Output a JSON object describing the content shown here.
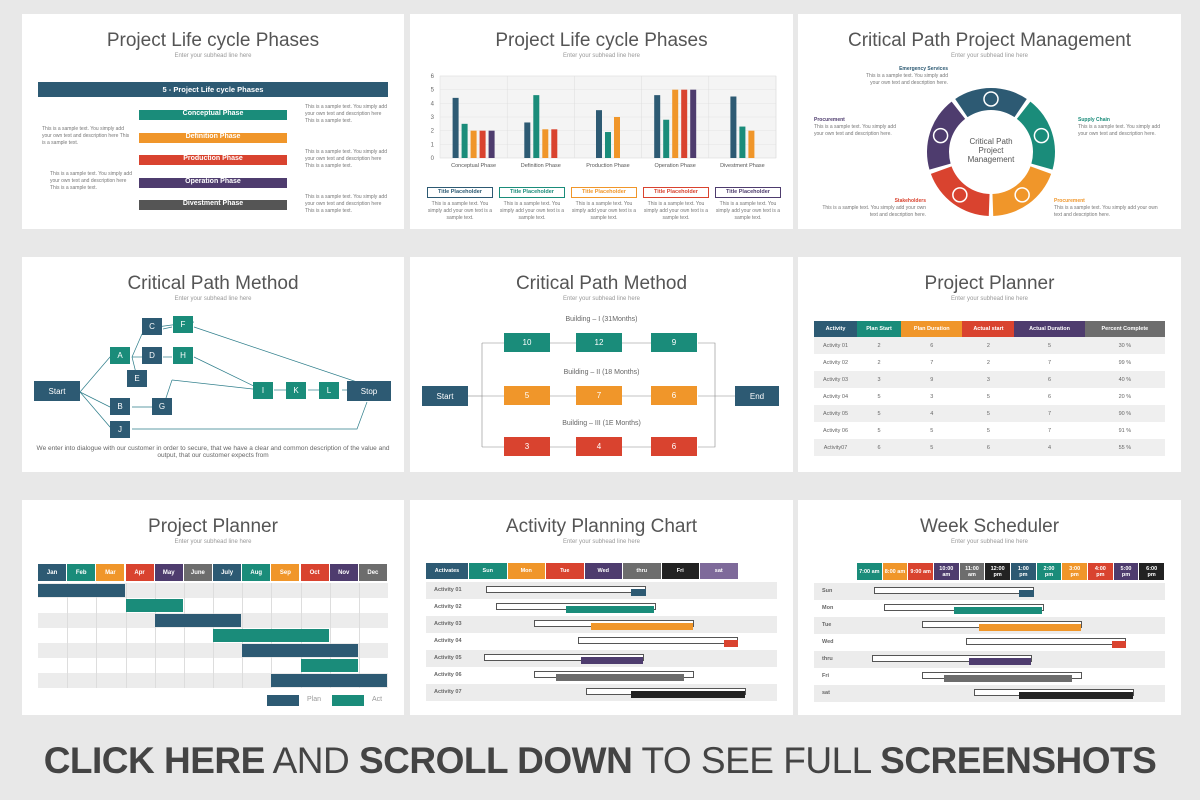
{
  "subhead": "Enter your subhead line here",
  "sample_text": "This is a sample text. You simply add your own text and description here This is a sample text.",
  "s1": {
    "title": "Project Life cycle Phases",
    "banner": "5 - Project Life cycle Phases",
    "phases": [
      {
        "label": "Conceptual Phase",
        "color": "#1a8c7a"
      },
      {
        "label": "Definition Phase",
        "color": "#f0962a"
      },
      {
        "label": "Production Phase",
        "color": "#d9432f"
      },
      {
        "label": "Operation Phase",
        "color": "#4e3c6e"
      },
      {
        "label": "Divestment Phase",
        "color": "#555555"
      }
    ]
  },
  "s2": {
    "title": "Project Life cycle Phases",
    "chart_data": {
      "type": "bar",
      "categories": [
        "Conceptual Phase",
        "Definition Phase",
        "Production Phase",
        "Operation Phase",
        "Divestment Phase"
      ],
      "ylim": [
        0,
        6
      ],
      "yticks": [
        "0",
        "1",
        "2",
        "3",
        "4",
        "5",
        "6"
      ],
      "series": [
        {
          "color": "#2d5a73",
          "values": [
            4.4,
            2.6,
            3.5,
            4.6,
            4.5
          ]
        },
        {
          "color": "#1a8c7a",
          "values": [
            2.5,
            4.6,
            1.9,
            2.8,
            2.3
          ]
        },
        {
          "color": "#f0962a",
          "values": [
            2.0,
            2.1,
            3.0,
            5.0,
            2.0
          ]
        },
        {
          "color": "#d9432f",
          "values": [
            2.0,
            2.1,
            null,
            5.0,
            null
          ]
        },
        {
          "color": "#4e3c6e",
          "values": [
            2.0,
            null,
            null,
            5.0,
            null
          ]
        }
      ]
    },
    "placeholders": [
      {
        "label": "Title Placeholder",
        "color": "#2d5a73"
      },
      {
        "label": "Title Placeholder",
        "color": "#1a8c7a"
      },
      {
        "label": "Title Placeholder",
        "color": "#f0962a"
      },
      {
        "label": "Title Placeholder",
        "color": "#d9432f"
      },
      {
        "label": "Title Placeholder",
        "color": "#4e3c6e"
      }
    ],
    "ph_text": "This is a sample text. You simply add your own text is a sample text."
  },
  "s3": {
    "title": "Critical Path Project Management",
    "center": "Critical Path Project Management",
    "labels": [
      {
        "head": "Emergency Services",
        "color": "#2d5a73"
      },
      {
        "head": "Supply Chain",
        "color": "#1a8c7a"
      },
      {
        "head": "Procurement",
        "color": "#f0962a"
      },
      {
        "head": "Stakeholders",
        "color": "#d9432f"
      },
      {
        "head": "Procurement",
        "color": "#4e3c6e"
      }
    ],
    "label_text": "This is a sample text. You simply add your own text and description here."
  },
  "s4": {
    "title": "Critical Path Method",
    "nodes": [
      "C",
      "F",
      "A",
      "D",
      "H",
      "E",
      "B",
      "G",
      "J",
      "I",
      "K",
      "L"
    ],
    "start": "Start",
    "stop": "Stop",
    "caption": "We enter into dialogue with our customer in order to secure, that we have a clear and common description of the value and output, that our customer expects from"
  },
  "s5": {
    "title": "Critical Path Method",
    "start": "Start",
    "end": "End",
    "rows": [
      {
        "label": "Building – I (31Months)",
        "values": [
          "10",
          "12",
          "9"
        ],
        "color": "#1a8c7a"
      },
      {
        "label": "Building – II (18 Months)",
        "values": [
          "5",
          "7",
          "6"
        ],
        "color": "#f0962a"
      },
      {
        "label": "Building – III (1E Months)",
        "values": [
          "3",
          "4",
          "6"
        ],
        "color": "#d9432f"
      }
    ]
  },
  "s6": {
    "title": "Project Planner",
    "headers": [
      {
        "label": "Activity",
        "color": "#2d5a73"
      },
      {
        "label": "Plan Start",
        "color": "#1a8c7a"
      },
      {
        "label": "Plan Duration",
        "color": "#f0962a"
      },
      {
        "label": "Actual start",
        "color": "#d9432f"
      },
      {
        "label": "Actual Duration",
        "color": "#4e3c6e"
      },
      {
        "label": "Percent Complete",
        "color": "#6d6d6d"
      }
    ],
    "rows": [
      [
        "Activity 01",
        "2",
        "6",
        "2",
        "5",
        "30 %"
      ],
      [
        "Activity 02",
        "2",
        "7",
        "2",
        "7",
        "99 %"
      ],
      [
        "Activity 03",
        "3",
        "9",
        "3",
        "6",
        "40 %"
      ],
      [
        "Activity 04",
        "5",
        "3",
        "5",
        "6",
        "20 %"
      ],
      [
        "Activity 05",
        "5",
        "4",
        "5",
        "7",
        "90 %"
      ],
      [
        "Activity 06",
        "5",
        "5",
        "5",
        "7",
        "91 %"
      ],
      [
        "Activity07",
        "6",
        "5",
        "6",
        "4",
        "55 %"
      ]
    ]
  },
  "s7": {
    "title": "Project Planner",
    "months": [
      {
        "label": "Jan",
        "color": "#2d5a73"
      },
      {
        "label": "Feb",
        "color": "#1a8c7a"
      },
      {
        "label": "Mar",
        "color": "#f0962a"
      },
      {
        "label": "Apr",
        "color": "#d9432f"
      },
      {
        "label": "May",
        "color": "#4e3c6e"
      },
      {
        "label": "June",
        "color": "#6d6d6d"
      },
      {
        "label": "July",
        "color": "#2d5a73"
      },
      {
        "label": "Aug",
        "color": "#1a8c7a"
      },
      {
        "label": "Sep",
        "color": "#f0962a"
      },
      {
        "label": "Oct",
        "color": "#d9432f"
      },
      {
        "label": "Nov",
        "color": "#4e3c6e"
      },
      {
        "label": "Dec",
        "color": "#6d6d6d"
      }
    ],
    "legend_plan": "Plan",
    "legend_act": "Act"
  },
  "s8": {
    "title": "Activity Planning Chart",
    "days": [
      {
        "label": "Activates",
        "color": "#2d5a73"
      },
      {
        "label": "Sun",
        "color": "#1a8c7a"
      },
      {
        "label": "Mon",
        "color": "#f0962a"
      },
      {
        "label": "Tue",
        "color": "#d9432f"
      },
      {
        "label": "Wed",
        "color": "#4e3c6e"
      },
      {
        "label": "thru",
        "color": "#6d6d6d"
      },
      {
        "label": "Fri",
        "color": "#222222"
      },
      {
        "label": "sat",
        "color": "#7e6a9a"
      }
    ],
    "rows": [
      "Activity 01",
      "Activity 02",
      "Activity 03",
      "Activity 04",
      "Activity 05",
      "Activity 06",
      "Activity 07"
    ]
  },
  "s9": {
    "title": "Week Scheduler",
    "times": [
      {
        "label": "7:00 am",
        "color": "#1a8c7a"
      },
      {
        "label": "8:00 am",
        "color": "#f0962a"
      },
      {
        "label": "9:00 am",
        "color": "#d9432f"
      },
      {
        "label": "10:00 am",
        "color": "#4e3c6e"
      },
      {
        "label": "11:00 am",
        "color": "#6d6d6d"
      },
      {
        "label": "12:00 pm",
        "color": "#222222"
      },
      {
        "label": "1:00 pm",
        "color": "#2d5a73"
      },
      {
        "label": "2:00 pm",
        "color": "#1a8c7a"
      },
      {
        "label": "3:00 pm",
        "color": "#f0962a"
      },
      {
        "label": "4:00 pm",
        "color": "#d9432f"
      },
      {
        "label": "5:00 pm",
        "color": "#4e3c6e"
      },
      {
        "label": "6:00 pm",
        "color": "#222222"
      }
    ],
    "rows": [
      "Sun",
      "Mon",
      "Tue",
      "Wed",
      "thru",
      "Fri",
      "sat"
    ]
  },
  "footer": {
    "a": "CLICK HERE",
    "b": " AND ",
    "c": "SCROLL DOWN",
    "d": " TO SEE FULL ",
    "e": "SCREENSHOTS"
  }
}
